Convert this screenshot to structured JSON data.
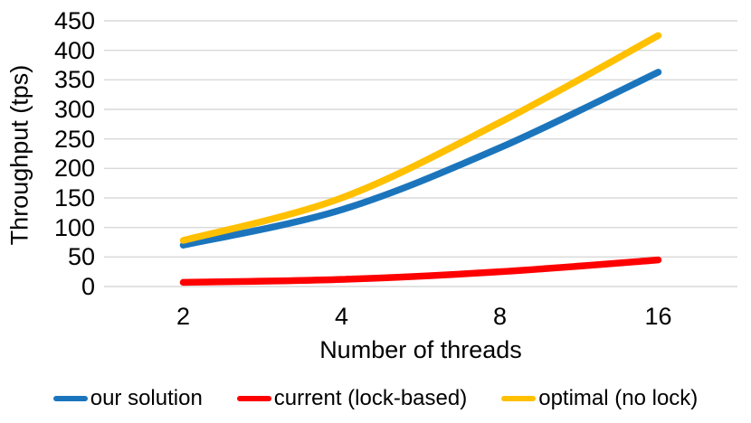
{
  "chart_data": {
    "type": "line",
    "xlabel": "Number of threads",
    "ylabel": "Throughput (tps)",
    "categories": [
      "2",
      "4",
      "8",
      "16"
    ],
    "series": [
      {
        "name": "our solution",
        "color": "#1B75BC",
        "values": [
          70,
          130,
          235,
          363
        ]
      },
      {
        "name": "current (lock-based)",
        "color": "#FF0000",
        "values": [
          7,
          12,
          25,
          45
        ]
      },
      {
        "name": "optimal (no lock)",
        "color": "#FFC000",
        "values": [
          78,
          150,
          278,
          425
        ]
      }
    ],
    "ylim": [
      0,
      450
    ],
    "yticks": [
      0,
      50,
      100,
      150,
      200,
      250,
      300,
      350,
      400,
      450
    ],
    "grid": true,
    "gridline_color": "#D9D9D9",
    "text_color": "#000000",
    "legend_position": "bottom",
    "line_smooth": true,
    "line_width": 7.5
  },
  "layout_labels": {
    "ylabel": "Throughput (tps)",
    "xlabel": "Number of threads"
  }
}
